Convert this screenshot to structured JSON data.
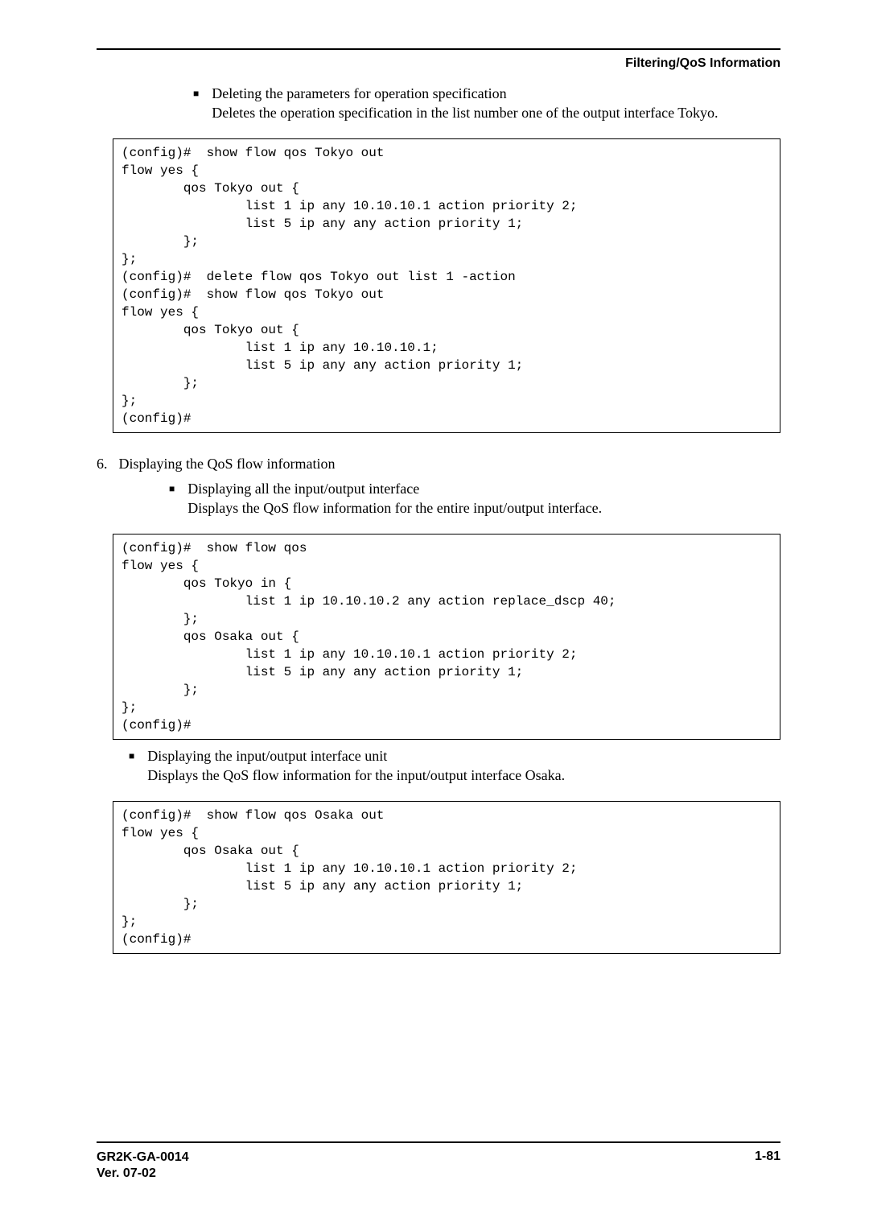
{
  "header": {
    "title": "Filtering/QoS Information"
  },
  "section1": {
    "bullet_title": "Deleting the parameters for operation specification",
    "bullet_body": "Deletes the operation specification in the list number one of the output interface Tokyo."
  },
  "code1": "(config)#  show flow qos Tokyo out\nflow yes {\n        qos Tokyo out {\n                list 1 ip any 10.10.10.1 action priority 2;\n                list 5 ip any any action priority 1;\n        };\n};\n(config)#  delete flow qos Tokyo out list 1 -action\n(config)#  show flow qos Tokyo out\nflow yes {\n        qos Tokyo out {\n                list 1 ip any 10.10.10.1;\n                list 5 ip any any action priority 1;\n        };\n};\n(config)#",
  "section2": {
    "number": "6.",
    "heading": "Displaying the QoS flow information",
    "sub_title": "Displaying all the input/output interface",
    "sub_body": "Displays the QoS flow information for the entire input/output interface."
  },
  "code2": "(config)#  show flow qos\nflow yes {\n        qos Tokyo in {\n                list 1 ip 10.10.10.2 any action replace_dscp 40;\n        };\n        qos Osaka out {\n                list 1 ip any 10.10.10.1 action priority 2;\n                list 5 ip any any action priority 1;\n        };\n};\n(config)#",
  "section3": {
    "sub_title": "Displaying the input/output interface unit",
    "sub_body": "Displays the QoS flow information for the input/output interface Osaka."
  },
  "code3": "(config)#  show flow qos Osaka out\nflow yes {\n        qos Osaka out {\n                list 1 ip any 10.10.10.1 action priority 2;\n                list 5 ip any any action priority 1;\n        };\n};\n(config)#",
  "footer": {
    "doc_id": "GR2K-GA-0014",
    "version": "Ver. 07-02",
    "page": "1-81"
  }
}
